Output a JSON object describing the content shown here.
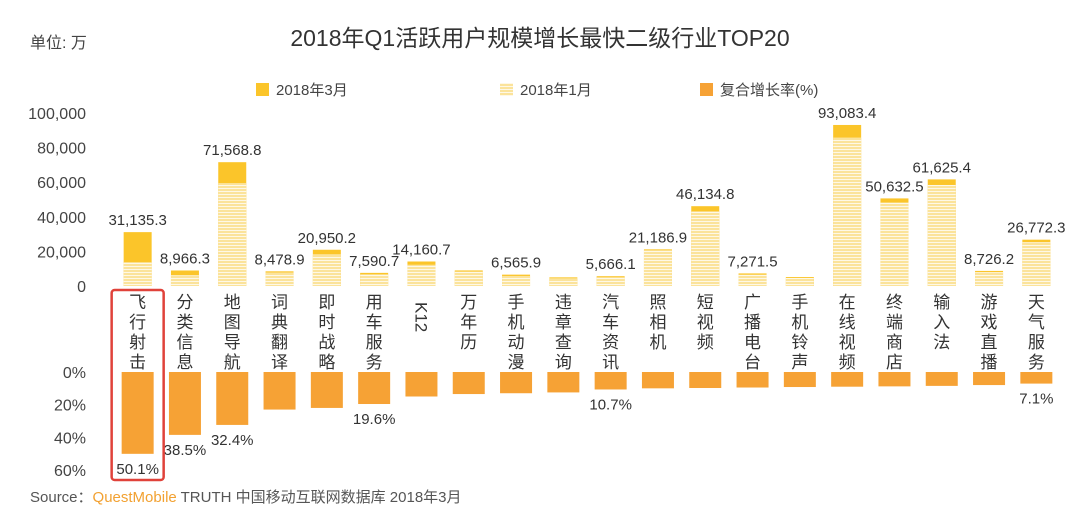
{
  "chart_data": {
    "type": "bar",
    "title": "2018年Q1活跃用户规模增长最快二级行业TOP20",
    "unit_label": "单位: 万",
    "legend": [
      "2018年3月",
      "2018年1月",
      "复合增长率(%)"
    ],
    "categories": [
      "飞行射击",
      "分类信息",
      "地图导航",
      "词典翻译",
      "即时战略",
      "用车服务",
      "K12",
      "万年历",
      "手机动漫",
      "违章查询",
      "汽车资讯",
      "照相机",
      "短视频",
      "广播电台",
      "手机铃声",
      "在线视频",
      "终端商店",
      "输入法",
      "游戏直播",
      "天气服务"
    ],
    "series": [
      {
        "name": "2018年3月",
        "values": [
          31135.3,
          8966.3,
          71568.8,
          8478.9,
          20950.2,
          7590.7,
          14160.7,
          9000,
          6565.9,
          5000,
          5666.1,
          21186.9,
          46134.8,
          7271.5,
          5200,
          93083.4,
          50632.5,
          61625.4,
          8726.2,
          26772.3
        ]
      },
      {
        "name": "2018年1月",
        "values": [
          13800,
          6200,
          59500,
          7700,
          18200,
          6800,
          12300,
          8400,
          5800,
          4300,
          5100,
          20700,
          43200,
          6600,
          4700,
          85700,
          48300,
          58400,
          8000,
          25300
        ]
      },
      {
        "name": "复合增长率(%)",
        "values": [
          50.1,
          38.5,
          32.4,
          23,
          22,
          19.6,
          15,
          13.5,
          13,
          12.5,
          10.7,
          10,
          9.8,
          9.5,
          9.2,
          9,
          8.8,
          8.5,
          8,
          7.1
        ]
      }
    ],
    "bar_labels": [
      "31,135.3",
      "8,966.3",
      "71,568.8",
      "8,478.9",
      "20,950.2",
      "7,590.7",
      "14,160.7",
      "",
      "6,565.9",
      "",
      "5,666.1",
      "21,186.9",
      "46,134.8",
      "7,271.5",
      "",
      "93,083.4",
      "50,632.5",
      "61,625.4",
      "8,726.2",
      "26,772.3"
    ],
    "growth_labels": [
      "50.1%",
      "38.5%",
      "32.4%",
      "",
      "",
      "19.6%",
      "",
      "",
      "",
      "",
      "10.7%",
      "",
      "",
      "",
      "",
      "",
      "",
      "",
      "",
      "7.1%"
    ],
    "y_ticks": [
      "100,000",
      "80,000",
      "60,000",
      "40,000",
      "20,000",
      "0"
    ],
    "y_tick_values": [
      100000,
      80000,
      60000,
      40000,
      20000,
      0
    ],
    "ylim": [
      0,
      100000
    ],
    "growth_ticks": [
      "0%",
      "20%",
      "40%",
      "60%"
    ],
    "growth_tick_values": [
      0,
      20,
      40,
      60
    ],
    "growth_lim": [
      0,
      60
    ],
    "highlight_index": 0,
    "colors": {
      "mar": "#fbc52a",
      "jan": "#fbe39b",
      "jan_line": "#ffffff",
      "growth": "#f6a235",
      "highlight": "#e0423a",
      "text": "#333333"
    }
  },
  "source": {
    "prefix": "Source：",
    "brand": "QuestMobile",
    "suffix": " TRUTH 中国移动互联网数据库 2018年3月"
  }
}
